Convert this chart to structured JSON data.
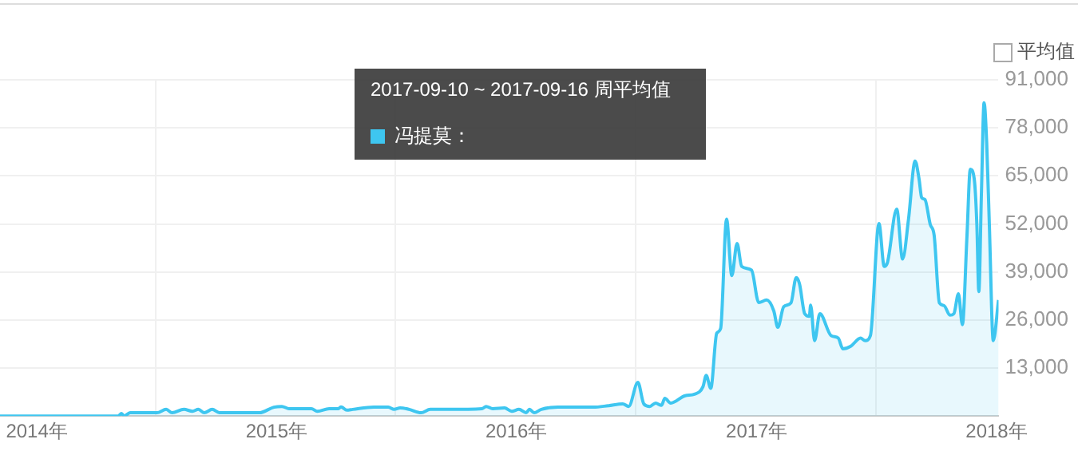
{
  "chart_data": {
    "type": "area",
    "annotations": [
      "2017-09-10 ~ 2017-09-16 周平均值",
      "平均值"
    ],
    "x": [
      "2013-11-06",
      "2014-05-05",
      "2014-05-10",
      "2014-05-14",
      "2014-05-23",
      "2014-07-03",
      "2014-07-17",
      "2014-07-26",
      "2014-08-13",
      "2014-08-26",
      "2014-09-04",
      "2014-09-13",
      "2014-09-25",
      "2014-10-06",
      "2014-12-06",
      "2014-12-28",
      "2015-01-09",
      "2015-01-20",
      "2015-02-23",
      "2015-03-04",
      "2015-03-22",
      "2015-04-05",
      "2015-04-09",
      "2015-04-18",
      "2015-04-27",
      "2015-05-29",
      "2015-06-20",
      "2015-06-29",
      "2015-07-08",
      "2015-07-22",
      "2015-08-09",
      "2015-08-23",
      "2015-09-19",
      "2015-11-10",
      "2015-11-16",
      "2015-11-26",
      "2015-12-14",
      "2015-12-25",
      "2016-01-05",
      "2016-01-16",
      "2016-01-21",
      "2016-01-28",
      "2016-02-08",
      "2016-03-04",
      "2016-04-27",
      "2016-05-20",
      "2016-06-11",
      "2016-06-20",
      "2016-07-04",
      "2016-07-13",
      "2016-07-22",
      "2016-07-31",
      "2016-08-09",
      "2016-08-14",
      "2016-08-23",
      "2016-09-14",
      "2016-09-28",
      "2016-10-11",
      "2016-10-16",
      "2016-10-23",
      "2016-11-01",
      "2016-11-07",
      "2016-11-16",
      "2016-11-24",
      "2016-12-02",
      "2016-12-09",
      "2016-12-24",
      "2017-01-04",
      "2017-01-16",
      "2017-01-27",
      "2017-02-02",
      "2017-02-11",
      "2017-02-22",
      "2017-03-02",
      "2017-03-07",
      "2017-03-15",
      "2017-03-22",
      "2017-03-24",
      "2017-03-30",
      "2017-04-07",
      "2017-04-24",
      "2017-05-05",
      "2017-05-12",
      "2017-05-24",
      "2017-06-08",
      "2017-06-15",
      "2017-06-23",
      "2017-07-06",
      "2017-07-14",
      "2017-07-19",
      "2017-08-02",
      "2017-08-11",
      "2017-08-20",
      "2017-08-30",
      "2017-09-05",
      "2017-09-09",
      "2017-09-14",
      "2017-09-22",
      "2017-09-28",
      "2017-10-06",
      "2017-10-13",
      "2017-10-22",
      "2017-10-28",
      "2017-11-04",
      "2017-11-10",
      "2017-11-17",
      "2017-11-22",
      "2017-11-28",
      "2017-12-02",
      "2017-12-05",
      "2017-12-09",
      "2017-12-13",
      "2017-12-17",
      "2017-12-21",
      "2017-12-27",
      "2018-01-04"
    ],
    "series": [
      {
        "name": "冯提莫：",
        "color": "#3ec6f0",
        "values": [
          0,
          0,
          700,
          0,
          900,
          900,
          1800,
          900,
          1800,
          1300,
          1800,
          900,
          1800,
          900,
          900,
          2400,
          2600,
          2000,
          2000,
          1300,
          2000,
          2000,
          2500,
          1600,
          1800,
          2400,
          2400,
          1800,
          2200,
          1800,
          900,
          1800,
          1800,
          2000,
          2600,
          2000,
          2200,
          1300,
          1800,
          900,
          1800,
          900,
          1800,
          2400,
          2400,
          2800,
          3300,
          2600,
          9100,
          3300,
          2600,
          3500,
          2900,
          4800,
          3500,
          5500,
          5900,
          7900,
          11000,
          7500,
          22400,
          23700,
          53300,
          38000,
          46700,
          40500,
          39500,
          30700,
          31400,
          28400,
          24000,
          29600,
          30600,
          37500,
          35800,
          27700,
          27000,
          30000,
          20400,
          27700,
          21800,
          21100,
          18200,
          18900,
          21100,
          20400,
          21800,
          52100,
          40500,
          41600,
          56000,
          42500,
          53300,
          69000,
          64200,
          59100,
          58600,
          51900,
          48900,
          30600,
          29900,
          27300,
          27700,
          33100,
          24700,
          48900,
          66800,
          64200,
          51900,
          33700,
          60600,
          84800,
          73900,
          51900,
          20400,
          31400
        ]
      }
    ],
    "xlim": [
      "2013-11-06",
      "2018-01-04"
    ],
    "xticks": [
      {
        "value": "2014-01-01",
        "label": "2014年"
      },
      {
        "value": "2014-07-01",
        "label": null
      },
      {
        "value": "2015-01-01",
        "label": "2015年"
      },
      {
        "value": "2015-07-01",
        "label": null
      },
      {
        "value": "2016-01-01",
        "label": "2016年"
      },
      {
        "value": "2016-07-01",
        "label": null
      },
      {
        "value": "2017-01-01",
        "label": "2017年"
      },
      {
        "value": "2017-07-01",
        "label": null
      },
      {
        "value": "2018-01-01",
        "label": "2018年"
      }
    ],
    "ylim": [
      0,
      91000
    ],
    "yticks": [
      {
        "value": 13000,
        "label": "13,000"
      },
      {
        "value": 26000,
        "label": "26,000"
      },
      {
        "value": 39000,
        "label": "39,000"
      },
      {
        "value": 52000,
        "label": "52,000"
      },
      {
        "value": 65000,
        "label": "65,000"
      },
      {
        "value": 78000,
        "label": "78,000"
      },
      {
        "value": 91000,
        "label": "91,000"
      }
    ],
    "grid": true,
    "legend": "top",
    "marker": "none",
    "line_style": "solid"
  }
}
